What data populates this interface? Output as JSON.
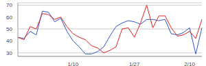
{
  "chart_data": {
    "type": "line",
    "categories": [
      null,
      null,
      null,
      null,
      null,
      null,
      null,
      null,
      null,
      "1/10",
      null,
      null,
      null,
      null,
      null,
      null,
      null,
      null,
      null,
      "1/27",
      null,
      null,
      null,
      null,
      null,
      null,
      null,
      null,
      "2/10",
      null,
      null
    ],
    "series": [
      {
        "color": "#3355cc",
        "values": [
          43,
          42,
          48,
          45,
          65,
          64,
          56,
          59,
          48,
          40,
          35,
          29,
          29,
          31,
          35,
          44,
          52,
          55,
          57,
          56,
          54,
          58,
          58,
          57,
          58,
          46,
          45,
          47,
          51,
          29,
          51
        ]
      },
      {
        "color": "#dd2222",
        "values": [
          43,
          41,
          52,
          50,
          63,
          62,
          58,
          60,
          52,
          46,
          43,
          41,
          36,
          34,
          30,
          32,
          35,
          50,
          51,
          43,
          55,
          70,
          51,
          61,
          61,
          51,
          44,
          45,
          48,
          42,
          58
        ]
      }
    ],
    "ylim": [
      27,
      72
    ],
    "yticks": [
      30,
      40,
      50,
      60,
      70
    ],
    "grid": true
  }
}
